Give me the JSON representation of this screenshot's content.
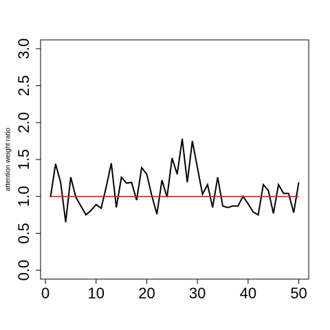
{
  "chart_data": {
    "type": "line",
    "y_label": "attention weight ratio",
    "x": [
      1,
      2,
      3,
      4,
      5,
      6,
      7,
      8,
      9,
      10,
      11,
      12,
      13,
      14,
      15,
      16,
      17,
      18,
      19,
      20,
      21,
      22,
      23,
      24,
      25,
      26,
      27,
      28,
      29,
      30,
      31,
      32,
      33,
      34,
      35,
      36,
      37,
      38,
      39,
      40,
      41,
      42,
      43,
      44,
      45,
      46,
      47,
      48,
      49,
      50
    ],
    "series": [
      {
        "color": "#000000",
        "values": [
          0.99,
          1.44,
          1.19,
          0.65,
          1.26,
          0.99,
          0.87,
          0.75,
          0.81,
          0.89,
          0.84,
          1.13,
          1.45,
          0.85,
          1.26,
          1.18,
          1.19,
          0.95,
          1.39,
          1.3,
          1.01,
          0.76,
          1.22,
          0.99,
          1.52,
          1.3,
          1.78,
          1.19,
          1.75,
          1.39,
          1.03,
          1.16,
          0.85,
          1.26,
          0.87,
          0.85,
          0.87,
          0.87,
          1.0,
          0.9,
          0.79,
          0.75,
          1.16,
          1.08,
          0.77,
          1.16,
          1.04,
          1.04,
          0.78,
          1.19
        ]
      }
    ],
    "reference_line": {
      "y": 1,
      "x": [
        1,
        50
      ],
      "color": "#ff0000"
    },
    "xlim": [
      -0.96,
      51.96
    ],
    "ylim": [
      -0.12,
      3.12
    ],
    "xticks": [
      0,
      10,
      20,
      30,
      40,
      50
    ],
    "yticks": [
      {
        "value": 0,
        "label": "0.0"
      },
      0.5,
      {
        "value": 1,
        "label": "1.0"
      },
      1.5,
      {
        "value": 2,
        "label": "2.0"
      },
      2.5,
      {
        "value": 3,
        "label": "3.0"
      }
    ]
  }
}
